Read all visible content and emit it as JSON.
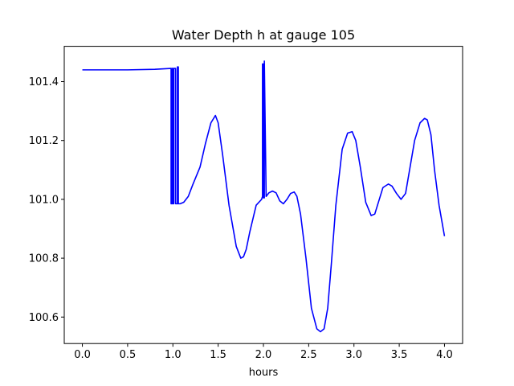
{
  "chart_data": {
    "type": "line",
    "title": "Water Depth h at gauge 105",
    "xlabel": "hours",
    "ylabel": "",
    "xlim": [
      -0.2,
      4.2
    ],
    "ylim": [
      100.51,
      101.52
    ],
    "xticks": [
      0.0,
      0.5,
      1.0,
      1.5,
      2.0,
      2.5,
      3.0,
      3.5,
      4.0
    ],
    "xtick_labels": [
      "0.0",
      "0.5",
      "1.0",
      "1.5",
      "2.0",
      "2.5",
      "3.0",
      "3.5",
      "4.0"
    ],
    "yticks": [
      100.6,
      100.8,
      101.0,
      101.2,
      101.4
    ],
    "ytick_labels": [
      "100.6",
      "100.8",
      "101.0",
      "101.2",
      "101.4"
    ],
    "grid": false,
    "series": [
      {
        "color": "#0000ff",
        "x": [
          0.0,
          0.5,
          0.8,
          0.98,
          0.98,
          0.99,
          0.99,
          1.0,
          1.0,
          1.01,
          1.01,
          1.03,
          1.03,
          1.05,
          1.05,
          1.06,
          1.06,
          1.08,
          1.12,
          1.17,
          1.22,
          1.3,
          1.36,
          1.42,
          1.47,
          1.5,
          1.55,
          1.62,
          1.7,
          1.75,
          1.78,
          1.81,
          1.85,
          1.92,
          1.98,
          1.99,
          1.99,
          2.0,
          2.0,
          2.01,
          2.01,
          2.03,
          2.06,
          2.1,
          2.14,
          2.18,
          2.22,
          2.26,
          2.3,
          2.34,
          2.37,
          2.41,
          2.47,
          2.53,
          2.59,
          2.63,
          2.67,
          2.71,
          2.75,
          2.8,
          2.87,
          2.93,
          2.98,
          3.02,
          3.07,
          3.13,
          3.19,
          3.23,
          3.27,
          3.32,
          3.38,
          3.42,
          3.47,
          3.52,
          3.57,
          3.62,
          3.67,
          3.73,
          3.78,
          3.81,
          3.85,
          3.89,
          3.94,
          4.0
        ],
        "y": [
          101.44,
          101.44,
          101.442,
          101.445,
          100.985,
          100.985,
          101.445,
          101.445,
          100.985,
          100.985,
          101.445,
          101.445,
          100.985,
          100.985,
          101.45,
          101.45,
          100.985,
          100.985,
          100.99,
          101.01,
          101.05,
          101.11,
          101.19,
          101.26,
          101.285,
          101.26,
          101.15,
          100.98,
          100.84,
          100.8,
          100.805,
          100.83,
          100.89,
          100.98,
          101.0,
          101.01,
          101.46,
          101.46,
          101.005,
          101.005,
          101.47,
          101.01,
          101.022,
          101.028,
          101.022,
          100.995,
          100.985,
          101.0,
          101.02,
          101.025,
          101.01,
          100.95,
          100.8,
          100.63,
          100.56,
          100.55,
          100.56,
          100.63,
          100.78,
          100.98,
          101.17,
          101.225,
          101.23,
          101.2,
          101.11,
          100.99,
          100.945,
          100.95,
          100.99,
          101.04,
          101.052,
          101.045,
          101.02,
          101.0,
          101.02,
          101.11,
          101.2,
          101.26,
          101.275,
          101.27,
          101.22,
          101.1,
          100.98,
          100.875
        ]
      }
    ]
  }
}
